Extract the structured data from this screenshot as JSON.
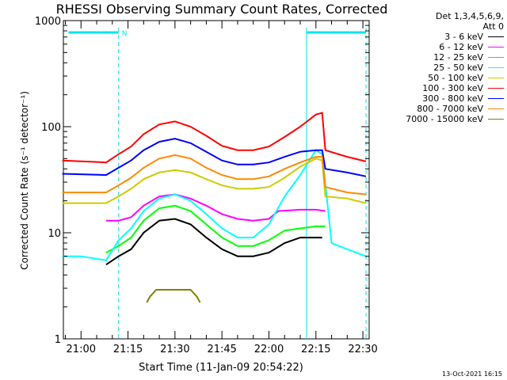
{
  "chart_data": {
    "type": "line",
    "title": "RHESSI Observing Summary Count Rates, Corrected",
    "xlabel": "Start Time (11-Jan-09 20:54:22)",
    "ylabel": "Corrected Count Rate (s⁻¹ detector⁻¹)",
    "yscale": "log",
    "ylim": [
      1,
      1000
    ],
    "yticks": [
      "1",
      "10",
      "100",
      "1000"
    ],
    "xlim": [
      "20:54:22",
      "22:32:00"
    ],
    "xticks": [
      "21:00",
      "21:15",
      "21:30",
      "21:45",
      "22:00",
      "22:15",
      "22:30"
    ],
    "legend_header": [
      "Det 1,3,4,5,6,9,",
      "Att 0"
    ],
    "legend_position": "right",
    "markers": {
      "night_label": "N",
      "cyan_bars": [
        {
          "start": "20:56",
          "end": "21:12"
        },
        {
          "start": "22:12",
          "end": "22:31"
        }
      ],
      "dashed_lines": [
        "21:12",
        "22:31"
      ],
      "solid_lines": [
        "22:12"
      ]
    },
    "series": [
      {
        "name": "3 - 6 keV",
        "color": "#000000",
        "points": [
          [
            "21:08",
            5
          ],
          [
            "21:12",
            6
          ],
          [
            "21:16",
            7
          ],
          [
            "21:20",
            10
          ],
          [
            "21:25",
            13
          ],
          [
            "21:30",
            13.5
          ],
          [
            "21:35",
            12
          ],
          [
            "21:40",
            9
          ],
          [
            "21:45",
            7
          ],
          [
            "21:50",
            6
          ],
          [
            "21:55",
            6
          ],
          [
            "22:00",
            6.5
          ],
          [
            "22:05",
            8
          ],
          [
            "22:10",
            9
          ],
          [
            "22:15",
            9
          ],
          [
            "22:17",
            9
          ]
        ]
      },
      {
        "name": "6 - 12 keV",
        "color": "#ff00ff",
        "points": [
          [
            "21:08",
            13
          ],
          [
            "21:12",
            13
          ],
          [
            "21:16",
            14
          ],
          [
            "21:20",
            18
          ],
          [
            "21:25",
            22
          ],
          [
            "21:30",
            23
          ],
          [
            "21:35",
            21
          ],
          [
            "21:40",
            18
          ],
          [
            "21:45",
            15
          ],
          [
            "21:50",
            13.5
          ],
          [
            "21:55",
            13
          ],
          [
            "22:00",
            13.5
          ],
          [
            "22:03",
            16
          ],
          [
            "22:10",
            16.5
          ],
          [
            "22:15",
            16.5
          ],
          [
            "22:18",
            16
          ]
        ]
      },
      {
        "name": "12 - 25 keV",
        "color": "#00ff00",
        "points": [
          [
            "21:08",
            6.5
          ],
          [
            "21:12",
            7.5
          ],
          [
            "21:16",
            9
          ],
          [
            "21:20",
            13
          ],
          [
            "21:25",
            17
          ],
          [
            "21:30",
            18
          ],
          [
            "21:35",
            16
          ],
          [
            "21:40",
            12
          ],
          [
            "21:45",
            9
          ],
          [
            "21:50",
            7.5
          ],
          [
            "21:55",
            7.5
          ],
          [
            "22:00",
            8.5
          ],
          [
            "22:05",
            10.5
          ],
          [
            "22:10",
            11
          ],
          [
            "22:15",
            11.5
          ],
          [
            "22:18",
            11.5
          ]
        ]
      },
      {
        "name": "25 - 50 keV",
        "color": "#00ffff",
        "points": [
          [
            "20:54",
            6
          ],
          [
            "21:00",
            6
          ],
          [
            "21:08",
            5.5
          ],
          [
            "21:12",
            8.5
          ],
          [
            "21:16",
            11
          ],
          [
            "21:20",
            16
          ],
          [
            "21:25",
            21
          ],
          [
            "21:30",
            23
          ],
          [
            "21:35",
            20
          ],
          [
            "21:40",
            15
          ],
          [
            "21:45",
            11
          ],
          [
            "21:50",
            9
          ],
          [
            "21:55",
            9
          ],
          [
            "22:00",
            12
          ],
          [
            "22:05",
            22
          ],
          [
            "22:10",
            35
          ],
          [
            "22:15",
            60
          ],
          [
            "22:17",
            55
          ],
          [
            "22:20",
            8
          ],
          [
            "22:25",
            7
          ],
          [
            "22:31",
            6
          ]
        ]
      },
      {
        "name": "50 - 100 keV",
        "color": "#cccc00",
        "points": [
          [
            "20:54",
            19
          ],
          [
            "21:08",
            19
          ],
          [
            "21:12",
            22
          ],
          [
            "21:16",
            26
          ],
          [
            "21:20",
            32
          ],
          [
            "21:25",
            37
          ],
          [
            "21:30",
            39
          ],
          [
            "21:35",
            37
          ],
          [
            "21:40",
            32
          ],
          [
            "21:45",
            28
          ],
          [
            "21:50",
            26
          ],
          [
            "21:55",
            26
          ],
          [
            "22:00",
            27
          ],
          [
            "22:05",
            33
          ],
          [
            "22:10",
            42
          ],
          [
            "22:15",
            50
          ],
          [
            "22:17",
            48
          ],
          [
            "22:18",
            22
          ],
          [
            "22:25",
            21
          ],
          [
            "22:31",
            19
          ]
        ]
      },
      {
        "name": "100 - 300 keV",
        "color": "#ff0000",
        "points": [
          [
            "20:54",
            48
          ],
          [
            "21:08",
            46
          ],
          [
            "21:12",
            55
          ],
          [
            "21:16",
            65
          ],
          [
            "21:20",
            85
          ],
          [
            "21:25",
            105
          ],
          [
            "21:30",
            112
          ],
          [
            "21:35",
            100
          ],
          [
            "21:40",
            82
          ],
          [
            "21:45",
            66
          ],
          [
            "21:50",
            60
          ],
          [
            "21:55",
            60
          ],
          [
            "22:00",
            65
          ],
          [
            "22:05",
            80
          ],
          [
            "22:10",
            100
          ],
          [
            "22:15",
            130
          ],
          [
            "22:17",
            135
          ],
          [
            "22:18",
            60
          ],
          [
            "22:25",
            52
          ],
          [
            "22:31",
            47
          ]
        ]
      },
      {
        "name": "300 - 800 keV",
        "color": "#0000ff",
        "points": [
          [
            "20:54",
            36
          ],
          [
            "21:08",
            35
          ],
          [
            "21:12",
            41
          ],
          [
            "21:16",
            48
          ],
          [
            "21:20",
            60
          ],
          [
            "21:25",
            72
          ],
          [
            "21:30",
            77
          ],
          [
            "21:35",
            70
          ],
          [
            "21:40",
            58
          ],
          [
            "21:45",
            48
          ],
          [
            "21:50",
            44
          ],
          [
            "21:55",
            44
          ],
          [
            "22:00",
            46
          ],
          [
            "22:05",
            52
          ],
          [
            "22:10",
            58
          ],
          [
            "22:15",
            60
          ],
          [
            "22:17",
            60
          ],
          [
            "22:18",
            40
          ],
          [
            "22:25",
            37
          ],
          [
            "22:31",
            34
          ]
        ]
      },
      {
        "name": "800 - 7000 keV",
        "color": "#ff8800",
        "points": [
          [
            "20:54",
            24
          ],
          [
            "21:08",
            24
          ],
          [
            "21:12",
            28
          ],
          [
            "21:16",
            33
          ],
          [
            "21:20",
            41
          ],
          [
            "21:25",
            50
          ],
          [
            "21:30",
            54
          ],
          [
            "21:35",
            50
          ],
          [
            "21:40",
            41
          ],
          [
            "21:45",
            35
          ],
          [
            "21:50",
            32
          ],
          [
            "21:55",
            32
          ],
          [
            "22:00",
            34
          ],
          [
            "22:05",
            40
          ],
          [
            "22:10",
            46
          ],
          [
            "22:15",
            52
          ],
          [
            "22:17",
            52
          ],
          [
            "22:18",
            27
          ],
          [
            "22:25",
            24
          ],
          [
            "22:31",
            23
          ]
        ]
      },
      {
        "name": "7000 - 15000 keV",
        "color": "#808000",
        "points": [
          [
            "21:21",
            2.2
          ],
          [
            "21:22",
            2.5
          ],
          [
            "21:24",
            2.9
          ],
          [
            "21:30",
            2.9
          ],
          [
            "21:35",
            2.9
          ],
          [
            "21:37",
            2.5
          ],
          [
            "21:38",
            2.2
          ]
        ]
      }
    ]
  },
  "timestamp": "13-Oct-2021 16:15"
}
